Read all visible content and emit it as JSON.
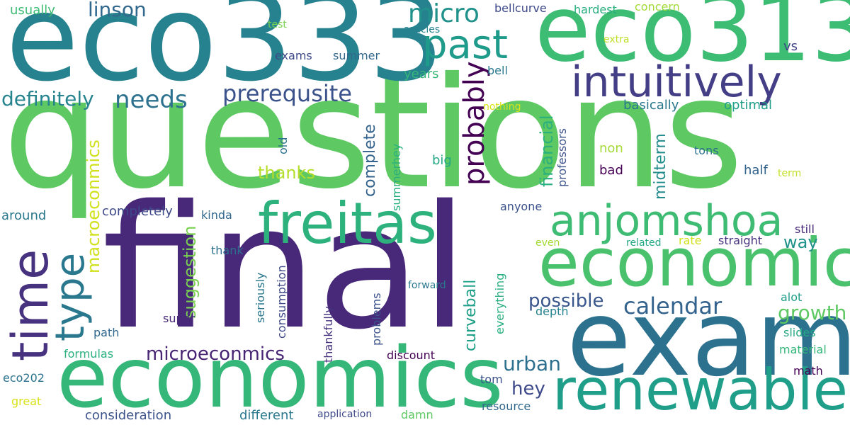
{
  "words": [
    {
      "text": "questions",
      "color": "#5ec962",
      "vertical": false
    },
    {
      "text": "final",
      "color": "#482878",
      "vertical": false
    },
    {
      "text": "eco333",
      "color": "#26828e",
      "vertical": false
    },
    {
      "text": "eco313",
      "color": "#3dbc74",
      "vertical": false
    },
    {
      "text": "exam",
      "color": "#2c728e",
      "vertical": false
    },
    {
      "text": "economics",
      "color": "#35b779",
      "vertical": false
    },
    {
      "text": "economic",
      "color": "#4ac16d",
      "vertical": false
    },
    {
      "text": "renewable",
      "color": "#1f9e89",
      "vertical": false
    },
    {
      "text": "freitas",
      "color": "#2db27d",
      "vertical": false
    },
    {
      "text": "anjomshoa",
      "color": "#3fbc73",
      "vertical": false
    },
    {
      "text": "intuitively",
      "color": "#433e85",
      "vertical": false
    },
    {
      "text": "past",
      "color": "#1e9b8a",
      "vertical": false
    },
    {
      "text": "time",
      "color": "#46327e",
      "vertical": true
    },
    {
      "text": "type",
      "color": "#2a788e",
      "vertical": true
    },
    {
      "text": "micro",
      "color": "#21918c",
      "vertical": false
    },
    {
      "text": "linson",
      "color": "#31688e",
      "vertical": false
    },
    {
      "text": "prerequsite",
      "color": "#3b528b",
      "vertical": false
    },
    {
      "text": "definitely",
      "color": "#25848e",
      "vertical": false
    },
    {
      "text": "needs",
      "color": "#2c728e",
      "vertical": false
    },
    {
      "text": "probably",
      "color": "#440154",
      "vertical": true
    },
    {
      "text": "calendar",
      "color": "#33638d",
      "vertical": false
    },
    {
      "text": "microeconmics",
      "color": "#482475",
      "vertical": false
    },
    {
      "text": "growth",
      "color": "#5ec962",
      "vertical": false
    },
    {
      "text": "possible",
      "color": "#39568c",
      "vertical": false
    },
    {
      "text": "urban",
      "color": "#2d708e",
      "vertical": false
    },
    {
      "text": "hey",
      "color": "#3e4989",
      "vertical": false
    },
    {
      "text": "thanks",
      "color": "#b5de2b",
      "vertical": false
    },
    {
      "text": "way",
      "color": "#21918c",
      "vertical": false
    },
    {
      "text": "macroeconmics",
      "color": "#d0e11c",
      "vertical": true
    },
    {
      "text": "suggestion",
      "color": "#7ad151",
      "vertical": true
    },
    {
      "text": "complete",
      "color": "#33638d",
      "vertical": true
    },
    {
      "text": "financial",
      "color": "#2ab07f",
      "vertical": true
    },
    {
      "text": "midterm",
      "color": "#228c8d",
      "vertical": true
    },
    {
      "text": "curveball",
      "color": "#1fa088",
      "vertical": true
    },
    {
      "text": "bellcurve",
      "color": "#3e4989",
      "vertical": false
    },
    {
      "text": "hardest",
      "color": "#29af7f",
      "vertical": false
    },
    {
      "text": "concern",
      "color": "#a2da37",
      "vertical": false
    },
    {
      "text": "usually",
      "color": "#3dbc74",
      "vertical": false
    },
    {
      "text": "test",
      "color": "#7ad151",
      "vertical": false
    },
    {
      "text": "articles",
      "color": "#26828e",
      "vertical": false
    },
    {
      "text": "extra",
      "color": "#bddf26",
      "vertical": false
    },
    {
      "text": "vs",
      "color": "#414487",
      "vertical": false
    },
    {
      "text": "exams",
      "color": "#3e4989",
      "vertical": false
    },
    {
      "text": "summer",
      "color": "#31688e",
      "vertical": false
    },
    {
      "text": "years",
      "color": "#35b779",
      "vertical": false
    },
    {
      "text": "bell",
      "color": "#2a788e",
      "vertical": false
    },
    {
      "text": "nothing",
      "color": "#d8e219",
      "vertical": false
    },
    {
      "text": "basically",
      "color": "#2a788e",
      "vertical": false
    },
    {
      "text": "optimal",
      "color": "#1f9e89",
      "vertical": false
    },
    {
      "text": "professors",
      "color": "#3b528b",
      "vertical": true
    },
    {
      "text": "old",
      "color": "#2c728e",
      "vertical": true
    },
    {
      "text": "summerhey",
      "color": "#2ab07f",
      "vertical": true
    },
    {
      "text": "non",
      "color": "#a5db36",
      "vertical": false
    },
    {
      "text": "tons",
      "color": "#2d708e",
      "vertical": false
    },
    {
      "text": "big",
      "color": "#22a884",
      "vertical": false
    },
    {
      "text": "bad",
      "color": "#440154",
      "vertical": false
    },
    {
      "text": "half",
      "color": "#32648e",
      "vertical": false
    },
    {
      "text": "term",
      "color": "#c2df23",
      "vertical": false
    },
    {
      "text": "around",
      "color": "#2a788e",
      "vertical": false
    },
    {
      "text": "completely",
      "color": "#3e4989",
      "vertical": false
    },
    {
      "text": "kinda",
      "color": "#31688e",
      "vertical": false
    },
    {
      "text": "anyone",
      "color": "#3b528b",
      "vertical": false
    },
    {
      "text": "still",
      "color": "#482878",
      "vertical": false
    },
    {
      "text": "even",
      "color": "#a2da37",
      "vertical": false
    },
    {
      "text": "rate",
      "color": "#d0e11c",
      "vertical": false
    },
    {
      "text": "related",
      "color": "#22a884",
      "vertical": false
    },
    {
      "text": "straight",
      "color": "#46327e",
      "vertical": false
    },
    {
      "text": "thank",
      "color": "#2d708e",
      "vertical": false
    },
    {
      "text": "seriously",
      "color": "#2a788e",
      "vertical": true
    },
    {
      "text": "consumption",
      "color": "#3e4989",
      "vertical": true
    },
    {
      "text": "thankfully",
      "color": "#46327e",
      "vertical": true
    },
    {
      "text": "problems",
      "color": "#3b528b",
      "vertical": true
    },
    {
      "text": "forward",
      "color": "#2a788e",
      "vertical": false
    },
    {
      "text": "everything",
      "color": "#29af7f",
      "vertical": true
    },
    {
      "text": "alot",
      "color": "#1f9e89",
      "vertical": false
    },
    {
      "text": "depth",
      "color": "#26828e",
      "vertical": false
    },
    {
      "text": "path",
      "color": "#31688e",
      "vertical": false
    },
    {
      "text": "super",
      "color": "#482878",
      "vertical": false
    },
    {
      "text": "slides",
      "color": "#22a884",
      "vertical": false
    },
    {
      "text": "formulas",
      "color": "#2ab07f",
      "vertical": false
    },
    {
      "text": "discount",
      "color": "#440154",
      "vertical": false
    },
    {
      "text": "material",
      "color": "#35b779",
      "vertical": false
    },
    {
      "text": "math",
      "color": "#440154",
      "vertical": false
    },
    {
      "text": "eco202",
      "color": "#2c728e",
      "vertical": false
    },
    {
      "text": "tom",
      "color": "#3b528b",
      "vertical": false
    },
    {
      "text": "great",
      "color": "#d8e219",
      "vertical": false
    },
    {
      "text": "resource",
      "color": "#31688e",
      "vertical": false
    },
    {
      "text": "consideration",
      "color": "#3b528b",
      "vertical": false
    },
    {
      "text": "different",
      "color": "#2a788e",
      "vertical": false
    },
    {
      "text": "application",
      "color": "#3e4989",
      "vertical": false
    },
    {
      "text": "damn",
      "color": "#5ec962",
      "vertical": false
    }
  ]
}
